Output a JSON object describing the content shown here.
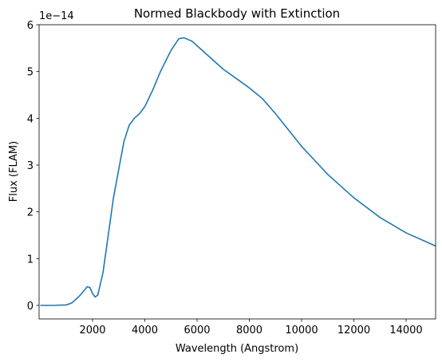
{
  "chart_data": {
    "type": "line",
    "title": "Normed Blackbody with Extinction",
    "xlabel": "Wavelength (Angstrom)",
    "ylabel": "Flux (FLAM)",
    "y_offset_label": "1e−14",
    "x": [
      0,
      500,
      1000,
      1200,
      1500,
      1800,
      1900,
      2000,
      2100,
      2200,
      2400,
      2600,
      2800,
      3000,
      3200,
      3400,
      3600,
      3800,
      4000,
      4300,
      4600,
      5000,
      5300,
      5500,
      5800,
      6200,
      6600,
      7000,
      7500,
      8000,
      8500,
      9000,
      9500,
      10000,
      11000,
      12000,
      13000,
      14000,
      15130
    ],
    "series": [
      {
        "name": "flux",
        "color": "#1f77b4",
        "values": [
          0,
          0,
          0.01,
          0.05,
          0.2,
          0.4,
          0.38,
          0.25,
          0.18,
          0.22,
          0.7,
          1.5,
          2.3,
          2.9,
          3.5,
          3.85,
          4.0,
          4.1,
          4.25,
          4.6,
          5.0,
          5.45,
          5.7,
          5.72,
          5.65,
          5.45,
          5.25,
          5.05,
          4.85,
          4.65,
          4.42,
          4.1,
          3.75,
          3.4,
          2.8,
          2.3,
          1.88,
          1.55,
          1.27
        ]
      }
    ],
    "xlim": [
      -46,
      15130
    ],
    "ylim": [
      -0.29,
      6
    ],
    "xticks": [
      2000,
      4000,
      6000,
      8000,
      10000,
      12000,
      14000
    ],
    "yticks": [
      0,
      1,
      2,
      3,
      4,
      5,
      6
    ]
  }
}
